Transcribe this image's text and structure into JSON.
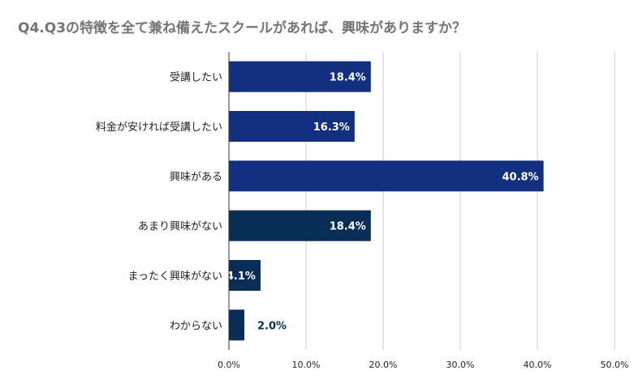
{
  "chart_data": {
    "type": "bar",
    "orientation": "horizontal",
    "title": "Q4.Q3の特徴を全て兼ね備えたスクールがあれば、興味がありますか？",
    "categories": [
      "受講したい",
      "料金が安ければ受講したい",
      "興味がある",
      "あまり興味がない",
      "まったく興味がない",
      "わからない"
    ],
    "values": [
      18.4,
      16.3,
      40.8,
      18.4,
      4.1,
      2.0
    ],
    "data_labels": [
      "18.4%",
      "16.3%",
      "40.8%",
      "18.4%",
      "4.1%",
      "2.0%"
    ],
    "bar_colors": [
      "#12307f",
      "#12307f",
      "#12307f",
      "#082e58",
      "#082e58",
      "#082e58"
    ],
    "label_outside_color": "#082e58",
    "label_inside_color": "#ffffff",
    "xlim": [
      0,
      50
    ],
    "xticks": [
      0,
      10,
      20,
      30,
      40,
      50
    ],
    "xtick_labels": [
      "0.0%",
      "10.0%",
      "20.0%",
      "30.0%",
      "40.0%",
      "50.0%"
    ],
    "grid": true,
    "gridline_color": "#cccccc",
    "axis_color": "#333333",
    "xlabel": "",
    "ylabel": ""
  }
}
